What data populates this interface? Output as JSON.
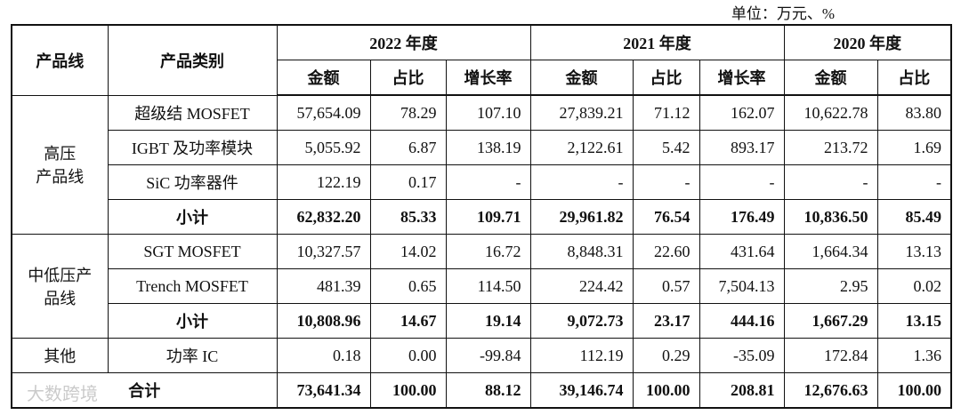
{
  "unit": "单位：万元、%",
  "table": {
    "header": {
      "product_line": "产品线",
      "category": "产品类别",
      "years": [
        {
          "label": "2022 年度",
          "columns": [
            "金额",
            "占比",
            "增长率"
          ]
        },
        {
          "label": "2021 年度",
          "columns": [
            "金额",
            "占比",
            "增长率"
          ]
        },
        {
          "label": "2020 年度",
          "columns": [
            "金额",
            "占比"
          ]
        }
      ]
    },
    "groups": [
      {
        "label": [
          "高压",
          "产品线"
        ],
        "rows": [
          [
            "超级结 MOSFET",
            "57,654.09",
            "78.29",
            "107.10",
            "27,839.21",
            "71.12",
            "162.07",
            "10,622.78",
            "83.80"
          ],
          [
            "IGBT 及功率模块",
            "5,055.92",
            "6.87",
            "138.19",
            "2,122.61",
            "5.42",
            "893.17",
            "213.72",
            "1.69"
          ],
          [
            "SiC 功率器件",
            "122.19",
            "0.17",
            "-",
            "-",
            "-",
            "-",
            "-",
            "-"
          ]
        ],
        "subtotal": [
          "小计",
          "62,832.20",
          "85.33",
          "109.71",
          "29,961.82",
          "76.54",
          "176.49",
          "10,836.50",
          "85.49"
        ]
      },
      {
        "label": [
          "中低压产",
          "品线"
        ],
        "rows": [
          [
            "SGT MOSFET",
            "10,327.57",
            "14.02",
            "16.72",
            "8,848.31",
            "22.60",
            "431.64",
            "1,664.34",
            "13.13"
          ],
          [
            "Trench MOSFET",
            "481.39",
            "0.65",
            "114.50",
            "224.42",
            "0.57",
            "7,504.13",
            "2.95",
            "0.02"
          ]
        ],
        "subtotal": [
          "小计",
          "10,808.96",
          "14.67",
          "19.14",
          "9,072.73",
          "23.17",
          "444.16",
          "1,667.29",
          "13.15"
        ]
      },
      {
        "label": [
          "其他"
        ],
        "rows": [
          [
            "功率 IC",
            "0.18",
            "0.00",
            "-99.84",
            "112.19",
            "0.29",
            "-35.09",
            "172.84",
            "1.36"
          ]
        ]
      }
    ],
    "total": [
      "合计",
      "73,641.34",
      "100.00",
      "88.12",
      "39,146.74",
      "100.00",
      "208.81",
      "12,676.63",
      "100.00"
    ]
  },
  "watermark": "大数跨境"
}
